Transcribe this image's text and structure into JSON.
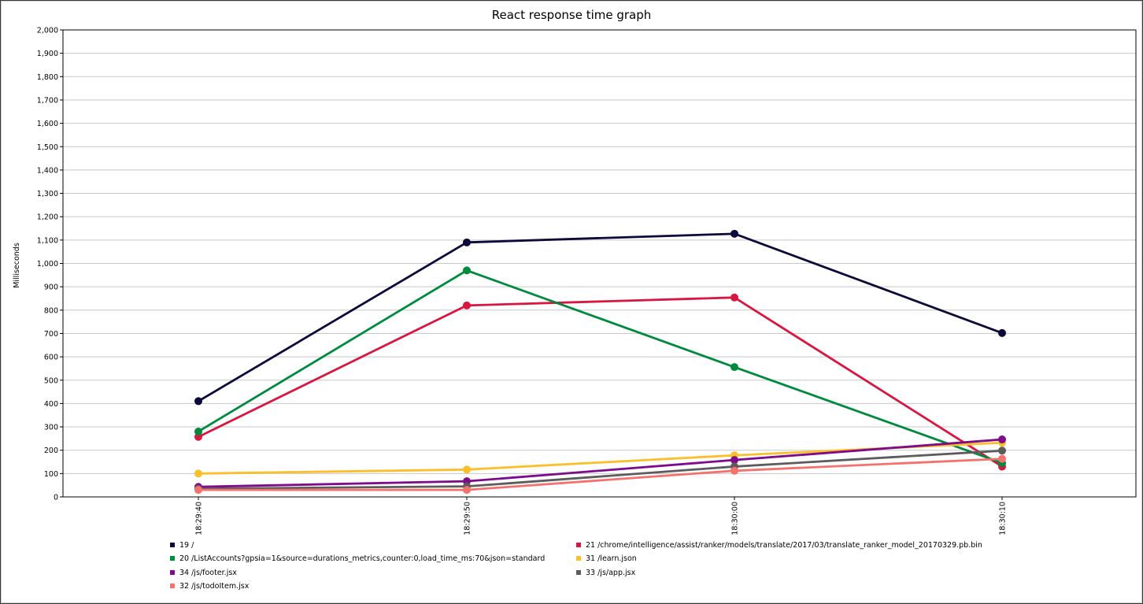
{
  "chart_data": {
    "type": "line",
    "title": "React response time graph",
    "xlabel": "",
    "ylabel": "Milliseconds",
    "x": [
      "18:29:40",
      "18:29:50",
      "18:30:00",
      "18:30:10"
    ],
    "ylim": [
      0,
      2000
    ],
    "yticks": [
      0,
      100,
      200,
      300,
      400,
      500,
      600,
      700,
      800,
      900,
      1000,
      1100,
      1200,
      1300,
      1400,
      1500,
      1600,
      1700,
      1800,
      1900,
      2000
    ],
    "ytick_labels": [
      "0",
      "100",
      "200",
      "300",
      "400",
      "500",
      "600",
      "700",
      "800",
      "900",
      "1,000",
      "1,100",
      "1,200",
      "1,300",
      "1,400",
      "1,500",
      "1,600",
      "1,700",
      "1,800",
      "1,900",
      "2,000"
    ],
    "grid": true,
    "legend_placement": "bottom",
    "series": [
      {
        "name": "19 /",
        "color": "#0c0a3a",
        "values": [
          410,
          1090,
          1127,
          702
        ]
      },
      {
        "name": "21 /chrome/intelligence/assist/ranker/models/translate/2017/03/translate_ranker_model_20170329.pb.bin",
        "color": "#d9163f",
        "values": [
          257,
          820,
          854,
          130
        ]
      },
      {
        "name": "20 /ListAccounts?gpsia=1&source=durations_metrics,counter:0,load_time_ms:70&json=standard",
        "color": "#008a3e",
        "values": [
          280,
          970,
          556,
          145
        ]
      },
      {
        "name": "31 /learn.json",
        "color": "#fbbf2a",
        "values": [
          100,
          117,
          178,
          232
        ]
      },
      {
        "name": "34 /js/footer.jsx",
        "color": "#7e0a8c",
        "values": [
          43,
          67,
          158,
          246
        ]
      },
      {
        "name": "33 /js/app.jsx",
        "color": "#5c5c5c",
        "values": [
          35,
          45,
          130,
          198
        ]
      },
      {
        "name": "32 /js/todoItem.jsx",
        "color": "#f5716e",
        "values": [
          30,
          30,
          112,
          163
        ]
      }
    ]
  }
}
